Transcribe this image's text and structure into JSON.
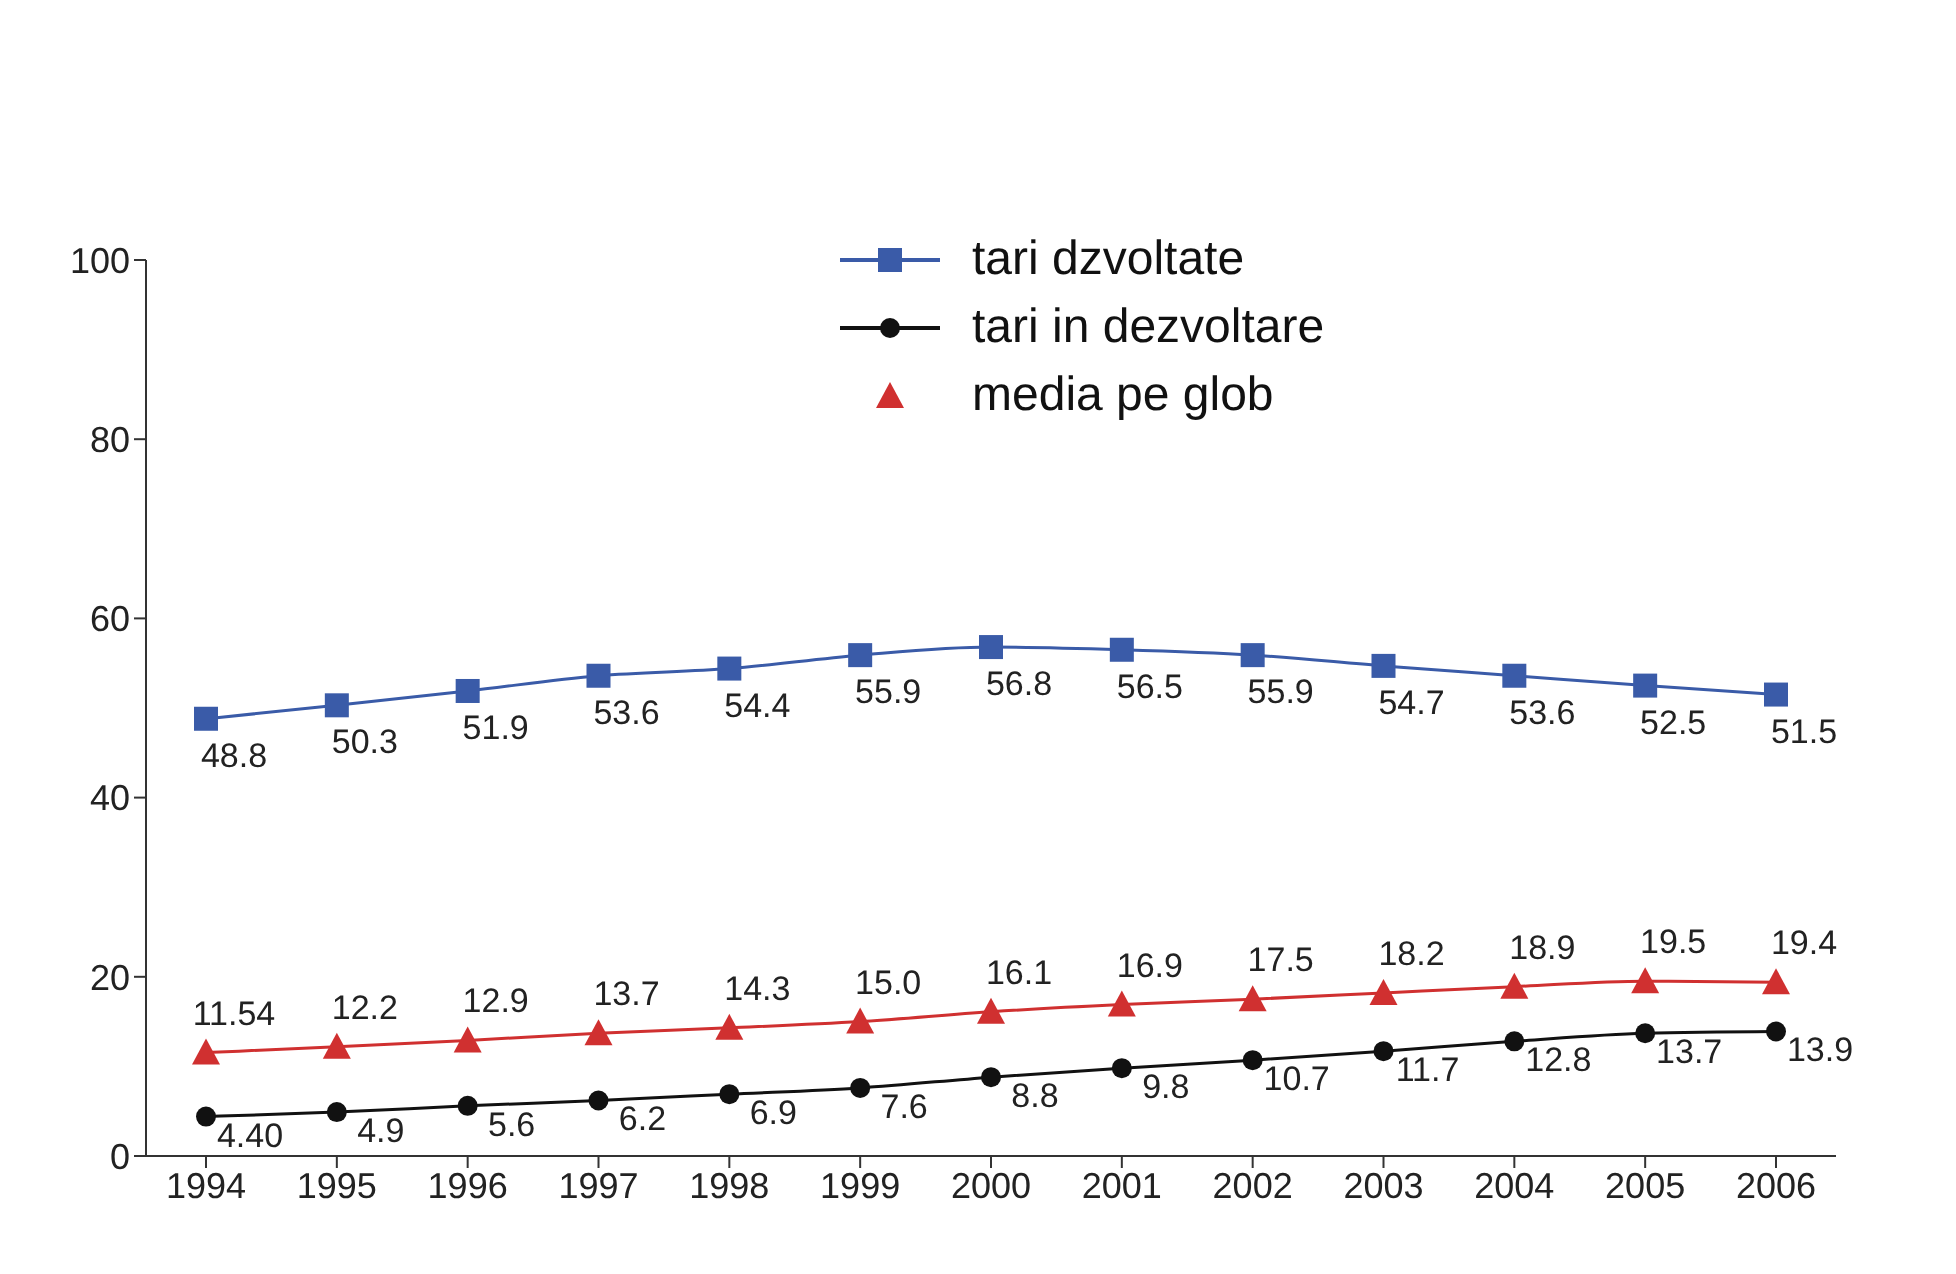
{
  "chart_data": {
    "type": "line",
    "categories": [
      "1994",
      "1995",
      "1996",
      "1997",
      "1998",
      "1999",
      "2000",
      "2001",
      "2002",
      "2003",
      "2004",
      "2005",
      "2006"
    ],
    "series": [
      {
        "name": "tari dzvoltate",
        "color": "#3a5ba8",
        "marker": "square",
        "values": [
          48.8,
          50.3,
          51.9,
          53.6,
          54.4,
          55.9,
          56.8,
          56.5,
          55.9,
          54.7,
          53.6,
          52.5,
          51.5
        ],
        "value_labels": [
          "48.8",
          "50.3",
          "51.9",
          "53.6",
          "54.4",
          "55.9",
          "56.8",
          "56.5",
          "55.9",
          "54.7",
          "53.6",
          "52.5",
          "51.5"
        ]
      },
      {
        "name": "tari in dezvoltare",
        "color": "#111111",
        "marker": "circle",
        "values": [
          4.4,
          4.9,
          5.6,
          6.2,
          6.9,
          7.6,
          8.8,
          9.8,
          10.7,
          11.7,
          12.8,
          13.7,
          13.9
        ],
        "value_labels": [
          "4.40",
          "4.9",
          "5.6",
          "6.2",
          "6.9",
          "7.6",
          "8.8",
          "9.8",
          "10.7",
          "11.7",
          "12.8",
          "13.7",
          "13.9"
        ]
      },
      {
        "name": "media pe glob",
        "color": "#d03030",
        "marker": "triangle",
        "values": [
          11.54,
          12.2,
          12.9,
          13.7,
          14.3,
          15.0,
          16.1,
          16.9,
          17.5,
          18.2,
          18.9,
          19.5,
          19.4
        ],
        "value_labels": [
          "11.54",
          "12.2",
          "12.9",
          "13.7",
          "14.3",
          "15.0",
          "16.1",
          "16.9",
          "17.5",
          "18.2",
          "18.9",
          "19.5",
          "19.4"
        ]
      }
    ],
    "ylim": [
      0,
      100
    ],
    "yticks": [
      0,
      20,
      40,
      60,
      80,
      100
    ],
    "grid": false,
    "legend": "top",
    "line_style": "solid"
  }
}
